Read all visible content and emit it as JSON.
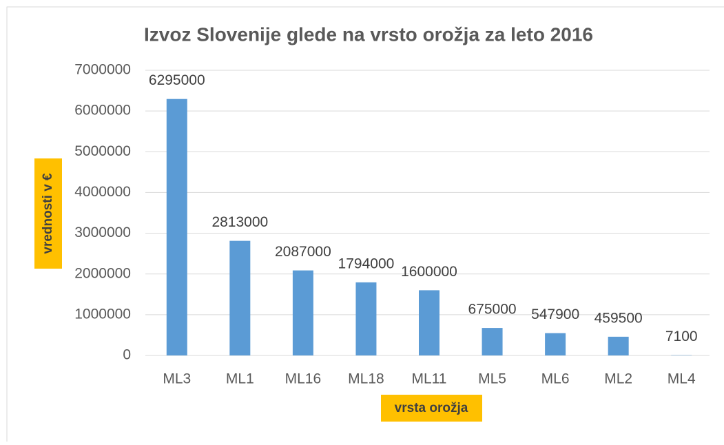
{
  "chart_data": {
    "type": "bar",
    "title": "Izvoz Slovenije glede na vrsto orožja za leto 2016",
    "y_label": "vrednosti v €",
    "x_label": "vrsta orožja",
    "categories": [
      "ML3",
      "ML1",
      "ML16",
      "ML18",
      "ML11",
      "ML5",
      "ML6",
      "ML2",
      "ML4"
    ],
    "values": [
      6295000,
      2813000,
      2087000,
      1794000,
      1600000,
      675000,
      547900,
      459500,
      7100
    ],
    "color": "#5b9bd5",
    "ylim": [
      0,
      7000000
    ],
    "yticks": [
      0,
      1000000,
      2000000,
      3000000,
      4000000,
      5000000,
      6000000,
      7000000
    ],
    "grid": true
  }
}
